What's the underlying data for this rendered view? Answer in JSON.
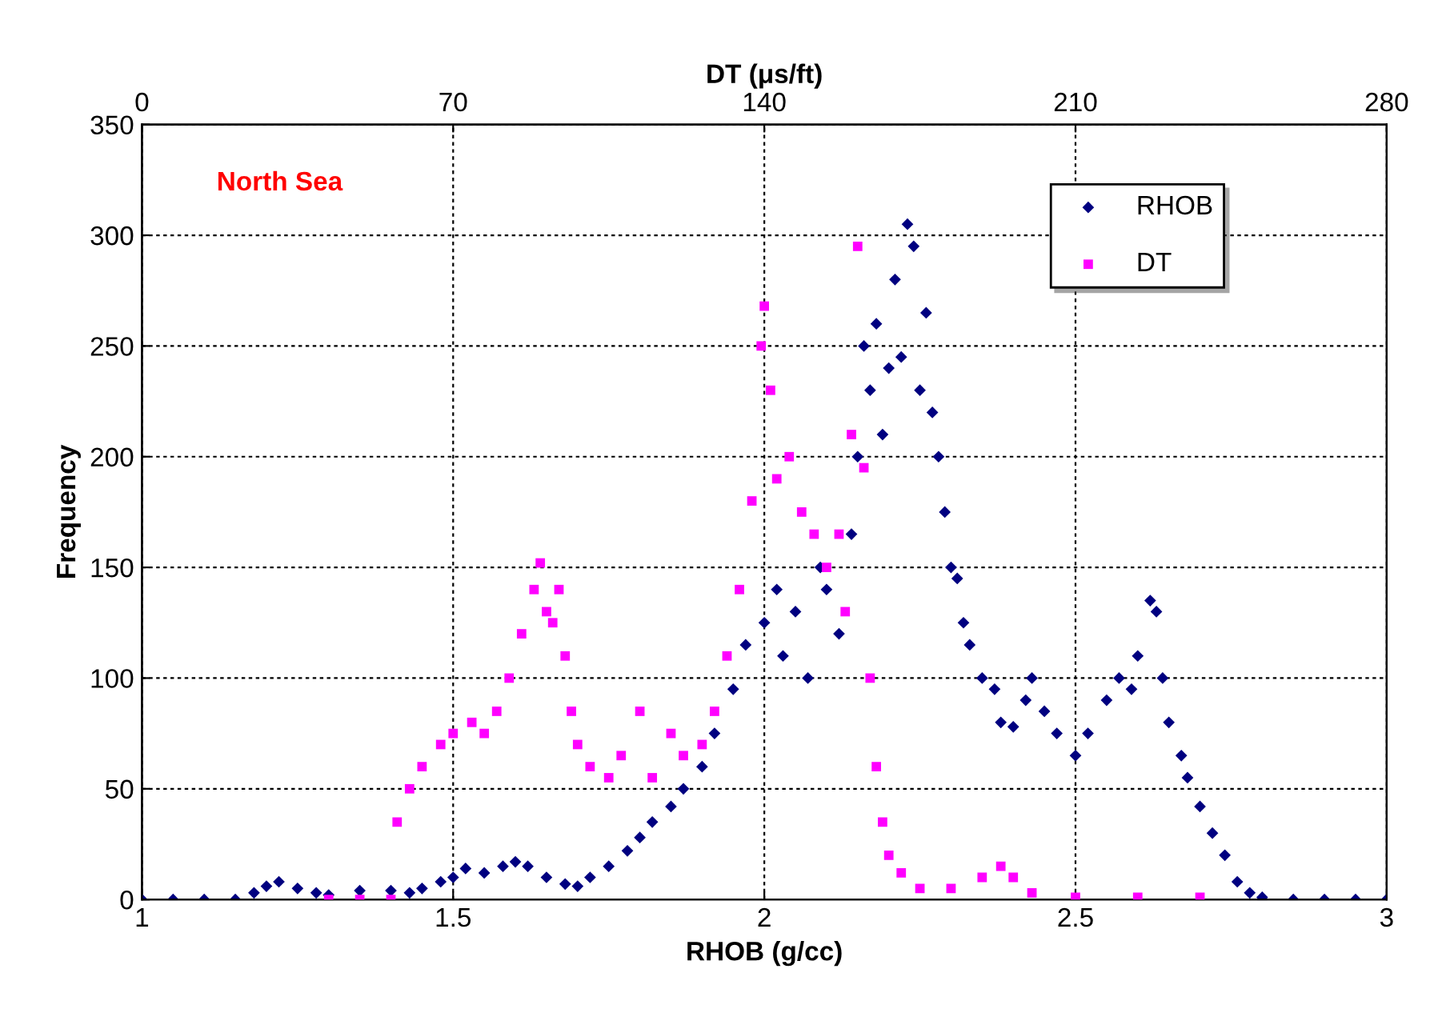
{
  "chart_data": {
    "type": "scatter",
    "xlabel": "RHOB (g/cc)",
    "ylabel": "Frequency",
    "x2label": "DT (μs/ft)",
    "xlim": [
      1,
      3
    ],
    "xticks": [
      1,
      1.5,
      2,
      2.5,
      3
    ],
    "x2lim": [
      0,
      280
    ],
    "x2ticks": [
      0,
      70,
      140,
      210,
      280
    ],
    "ylim": [
      0,
      350
    ],
    "yticks": [
      0,
      50,
      100,
      150,
      200,
      250,
      300,
      350
    ],
    "grid": true,
    "legend": "top right",
    "annotations": [
      "North Sea"
    ],
    "series": [
      {
        "name": "RHOB",
        "color": "#000080",
        "marker": "diamond",
        "x": [
          1.0,
          1.05,
          1.1,
          1.15,
          1.18,
          1.2,
          1.22,
          1.25,
          1.28,
          1.3,
          1.35,
          1.4,
          1.43,
          1.45,
          1.48,
          1.5,
          1.52,
          1.55,
          1.58,
          1.6,
          1.62,
          1.65,
          1.68,
          1.7,
          1.72,
          1.75,
          1.78,
          1.8,
          1.82,
          1.85,
          1.87,
          1.9,
          1.92,
          1.95,
          1.97,
          2.0,
          2.02,
          2.03,
          2.05,
          2.07,
          2.09,
          2.1,
          2.12,
          2.14,
          2.15,
          2.16,
          2.17,
          2.18,
          2.19,
          2.2,
          2.21,
          2.22,
          2.23,
          2.24,
          2.25,
          2.26,
          2.27,
          2.28,
          2.29,
          2.3,
          2.31,
          2.32,
          2.33,
          2.35,
          2.37,
          2.38,
          2.4,
          2.42,
          2.43,
          2.45,
          2.47,
          2.5,
          2.52,
          2.55,
          2.57,
          2.59,
          2.6,
          2.62,
          2.63,
          2.64,
          2.65,
          2.67,
          2.68,
          2.7,
          2.72,
          2.74,
          2.76,
          2.78,
          2.8,
          2.85,
          2.9,
          2.95,
          3.0
        ],
        "values": [
          0,
          0,
          0,
          0,
          3,
          6,
          8,
          5,
          3,
          2,
          4,
          4,
          3,
          5,
          8,
          10,
          14,
          12,
          15,
          17,
          15,
          10,
          7,
          6,
          10,
          15,
          22,
          28,
          35,
          42,
          50,
          60,
          75,
          95,
          115,
          125,
          140,
          110,
          130,
          100,
          150,
          140,
          120,
          165,
          200,
          250,
          230,
          260,
          210,
          240,
          280,
          245,
          305,
          295,
          230,
          265,
          220,
          200,
          175,
          150,
          145,
          125,
          115,
          100,
          95,
          80,
          78,
          90,
          100,
          85,
          75,
          65,
          75,
          90,
          100,
          95,
          110,
          135,
          130,
          100,
          80,
          65,
          55,
          42,
          30,
          20,
          8,
          3,
          1,
          0,
          0,
          0,
          0
        ]
      },
      {
        "name": "DT",
        "color": "#ff00ff",
        "marker": "square",
        "axis": "x2",
        "x": [
          42,
          49,
          56,
          57.4,
          60.2,
          63,
          67.2,
          70,
          74.2,
          77,
          79.8,
          82.6,
          85.4,
          88.2,
          89.6,
          91,
          92.4,
          93.8,
          95.2,
          96.6,
          98,
          100.8,
          105,
          107.8,
          112,
          114.8,
          119,
          121.8,
          126,
          128.8,
          131.6,
          134.4,
          137.2,
          139.3,
          140,
          141.4,
          142.8,
          145.6,
          148.4,
          151.2,
          154,
          156.8,
          158.2,
          159.6,
          161,
          162.4,
          163.8,
          165.2,
          166.6,
          168,
          170.8,
          175,
          182,
          189,
          193.2,
          196,
          200.2,
          210,
          224,
          238
        ],
        "values": [
          0,
          0,
          0,
          35,
          50,
          60,
          70,
          75,
          80,
          75,
          85,
          100,
          120,
          140,
          152,
          130,
          125,
          140,
          110,
          85,
          70,
          60,
          55,
          65,
          85,
          55,
          75,
          65,
          70,
          85,
          110,
          140,
          180,
          250,
          268,
          230,
          190,
          200,
          175,
          165,
          150,
          165,
          130,
          210,
          295,
          195,
          100,
          60,
          35,
          20,
          12,
          5,
          5,
          10,
          15,
          10,
          3,
          1,
          1,
          1
        ]
      }
    ]
  }
}
